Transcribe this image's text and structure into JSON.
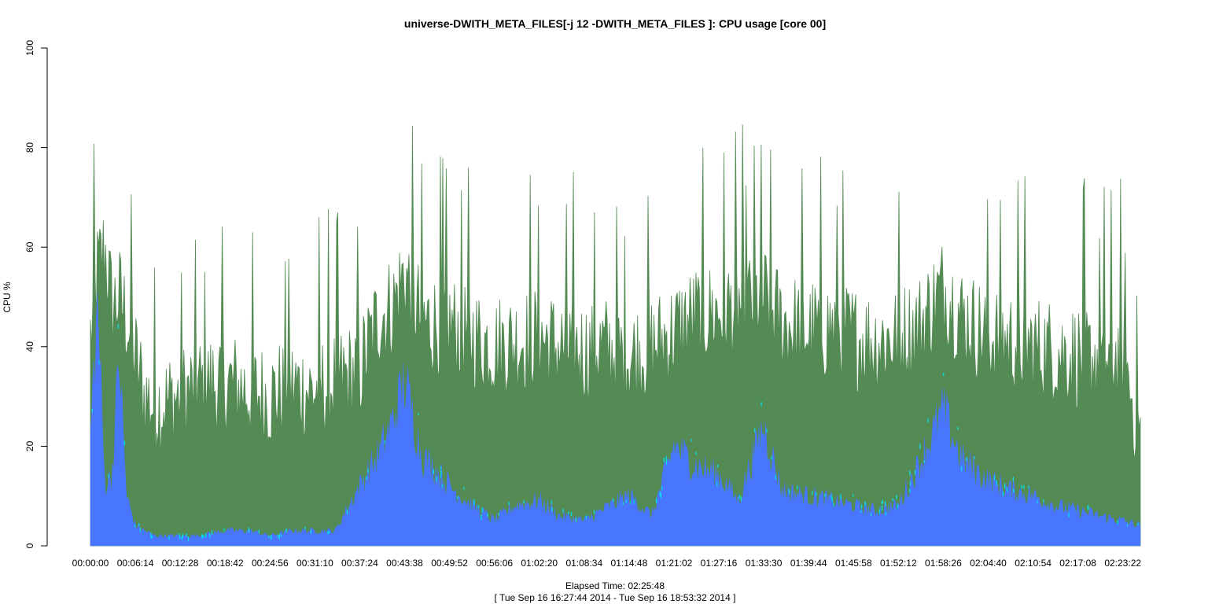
{
  "chart_data": {
    "type": "area",
    "title": "universe-DWITH_META_FILES[-j 12 -DWITH_META_FILES ]: CPU usage [core 00]",
    "xlabel": "Elapsed Time: 02:25:48",
    "xlabel_range": "[ Tue Sep 16 16:27:44 2014 - Tue Sep 16 18:53:32 2014 ]",
    "ylabel": "CPU %",
    "ylim": [
      0,
      100
    ],
    "yticks": [
      "0",
      "20",
      "40",
      "60",
      "80",
      "100"
    ],
    "xlim_seconds": [
      0,
      8748
    ],
    "xticks": [
      "00:00:00",
      "00:06:14",
      "00:12:28",
      "00:18:42",
      "00:24:56",
      "00:31:10",
      "00:37:24",
      "00:43:38",
      "00:49:52",
      "00:56:06",
      "01:02:20",
      "01:08:34",
      "01:14:48",
      "01:21:02",
      "01:27:16",
      "01:33:30",
      "01:39:44",
      "01:45:58",
      "01:52:12",
      "01:58:26",
      "02:04:40",
      "02:10:54",
      "02:17:08",
      "02:23:22"
    ],
    "grid": false,
    "legend": "none",
    "colors": {
      "total": "#548b54",
      "user": "#4876ff",
      "spikes": "#00e5ee"
    },
    "series": [
      {
        "key": "total",
        "x": [
          "00:00:00",
          "00:01:00",
          "00:02:00",
          "00:03:00",
          "00:04:00",
          "00:05:00",
          "00:06:14",
          "00:07:30",
          "00:09:00",
          "00:12:28",
          "00:15:00",
          "00:18:42",
          "00:22:00",
          "00:24:56",
          "00:28:00",
          "00:31:10",
          "00:34:00",
          "00:37:24",
          "00:40:00",
          "00:42:00",
          "00:43:38",
          "00:46:00",
          "00:49:52",
          "00:53:00",
          "00:56:06",
          "00:59:00",
          "01:02:20",
          "01:05:00",
          "01:08:34",
          "01:11:00",
          "01:14:48",
          "01:18:00",
          "01:21:02",
          "01:24:00",
          "01:27:16",
          "01:30:00",
          "01:33:30",
          "01:36:00",
          "01:39:44",
          "01:43:00",
          "01:45:58",
          "01:49:00",
          "01:52:12",
          "01:55:00",
          "01:58:26",
          "02:01:00",
          "02:04:40",
          "02:08:00",
          "02:10:54",
          "02:14:00",
          "02:17:08",
          "02:20:00",
          "02:23:22",
          "02:25:48"
        ],
        "values": [
          42,
          55,
          60,
          48,
          50,
          46,
          38,
          30,
          28,
          30,
          32,
          33,
          31,
          30,
          32,
          31,
          33,
          35,
          46,
          48,
          55,
          45,
          44,
          42,
          40,
          41,
          42,
          40,
          39,
          40,
          38,
          40,
          43,
          46,
          47,
          48,
          50,
          45,
          43,
          44,
          42,
          41,
          42,
          44,
          52,
          46,
          42,
          41,
          40,
          39,
          38,
          38,
          38,
          22
        ]
      },
      {
        "key": "user",
        "x": [
          "00:00:00",
          "00:01:00",
          "00:02:00",
          "00:03:00",
          "00:04:00",
          "00:05:00",
          "00:06:14",
          "00:07:30",
          "00:09:00",
          "00:12:28",
          "00:15:00",
          "00:18:42",
          "00:22:00",
          "00:24:56",
          "00:28:00",
          "00:31:10",
          "00:34:00",
          "00:37:24",
          "00:40:00",
          "00:42:00",
          "00:43:38",
          "00:46:00",
          "00:49:52",
          "00:53:00",
          "00:56:06",
          "00:59:00",
          "01:02:20",
          "01:05:00",
          "01:08:34",
          "01:11:00",
          "01:14:48",
          "01:18:00",
          "01:21:02",
          "01:24:00",
          "01:27:16",
          "01:30:00",
          "01:33:30",
          "01:36:00",
          "01:39:44",
          "01:43:00",
          "01:45:58",
          "01:49:00",
          "01:52:12",
          "01:55:00",
          "01:58:26",
          "02:01:00",
          "02:04:40",
          "02:08:00",
          "02:10:54",
          "02:14:00",
          "02:17:08",
          "02:20:00",
          "02:23:22",
          "02:25:48"
        ],
        "values": [
          22,
          48,
          12,
          14,
          38,
          10,
          4,
          3,
          2,
          2,
          2,
          3,
          3,
          2,
          3,
          3,
          3,
          12,
          18,
          25,
          33,
          18,
          12,
          8,
          5,
          8,
          9,
          6,
          5,
          7,
          10,
          6,
          20,
          16,
          14,
          9,
          24,
          11,
          10,
          9,
          8,
          7,
          8,
          16,
          27,
          17,
          13,
          11,
          10,
          8,
          7,
          6,
          5,
          4
        ]
      }
    ]
  }
}
